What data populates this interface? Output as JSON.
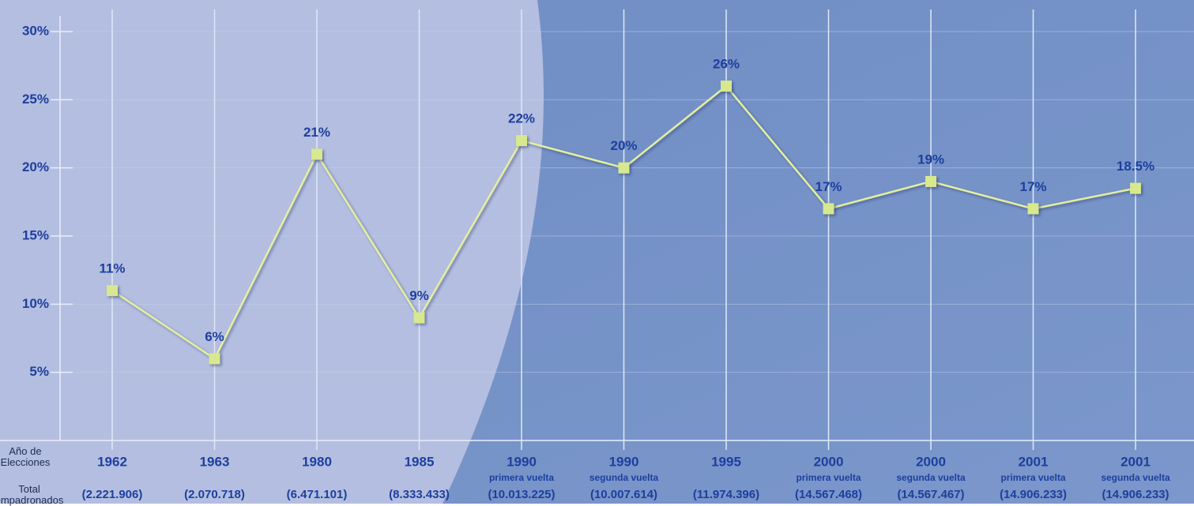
{
  "chart_data": {
    "type": "line",
    "x_axis_title": "Año de Elecciones",
    "totals_title": "Total empadronados",
    "categories": [
      "1962",
      "1963",
      "1980",
      "1985",
      "1990",
      "1990",
      "1995",
      "2000",
      "2000",
      "2001",
      "2001"
    ],
    "rounds": [
      null,
      null,
      null,
      null,
      "primera vuelta",
      "segunda vuelta",
      null,
      "primera vuelta",
      "segunda vuelta",
      "primera vuelta",
      "segunda vuelta"
    ],
    "totals": [
      "(2.221.906)",
      "(2.070.718)",
      "(6.471.101)",
      "(8.333.433)",
      "(10.013.225)",
      "(10.007.614)",
      "(11.974.396)",
      "(14.567.468)",
      "(14.567.467)",
      "(14.906.233)",
      "(14.906.233)"
    ],
    "series": [
      {
        "color": "#e4eea0",
        "values": [
          11,
          6,
          21,
          9,
          22,
          20,
          26,
          17,
          19,
          17,
          18.5
        ],
        "value_labels": [
          "11%",
          "6%",
          "21%",
          "9%",
          "22%",
          "20%",
          "26%",
          "17%",
          "19%",
          "17%",
          "18.5%"
        ]
      }
    ],
    "ylim": [
      0,
      30
    ],
    "yticks": [
      {
        "value": 5,
        "label": "5%"
      },
      {
        "value": 10,
        "label": "10%"
      },
      {
        "value": 15,
        "label": "15%"
      },
      {
        "value": 20,
        "label": "20%"
      },
      {
        "value": 25,
        "label": "25%"
      },
      {
        "value": 30,
        "label": "30%"
      }
    ],
    "grid": true
  }
}
